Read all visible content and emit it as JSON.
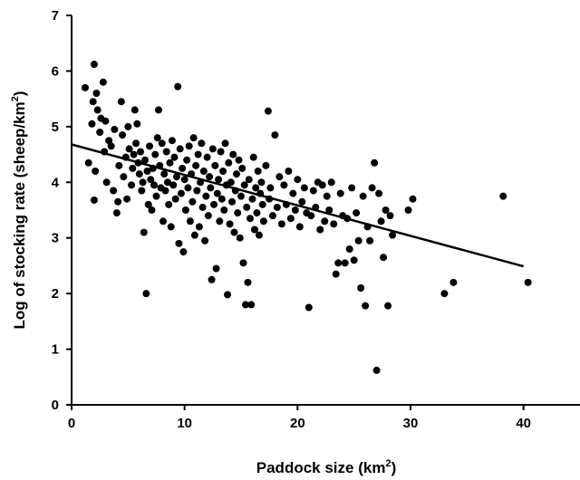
{
  "chart_data": {
    "type": "scatter",
    "xlabel_main": "Paddock size (km",
    "xlabel_sup": "2",
    "xlabel_end": ")",
    "ylabel_main": "Log of stocking rate (sheep/km",
    "ylabel_sup": "2",
    "ylabel_end": ")",
    "xlim": [
      0,
      45
    ],
    "ylim": [
      0,
      7
    ],
    "xticks": [
      0,
      10,
      20,
      30,
      40
    ],
    "yticks": [
      0,
      1,
      2,
      3,
      4,
      5,
      6,
      7
    ],
    "grid": false,
    "point_color": "#000000",
    "trendline": {
      "x": [
        0,
        40
      ],
      "y": [
        4.68,
        2.49
      ]
    },
    "points": [
      [
        1.2,
        5.7
      ],
      [
        1.5,
        4.35
      ],
      [
        1.8,
        5.05
      ],
      [
        1.9,
        5.45
      ],
      [
        2.0,
        6.12
      ],
      [
        2.1,
        4.2
      ],
      [
        2.2,
        5.6
      ],
      [
        2.3,
        5.3
      ],
      [
        2.5,
        4.9
      ],
      [
        2.6,
        5.15
      ],
      [
        2.0,
        3.68
      ],
      [
        2.8,
        5.8
      ],
      [
        2.9,
        4.55
      ],
      [
        3.0,
        5.1
      ],
      [
        3.1,
        4.0
      ],
      [
        3.3,
        4.75
      ],
      [
        3.5,
        4.65
      ],
      [
        3.7,
        3.85
      ],
      [
        3.8,
        4.95
      ],
      [
        4.0,
        3.45
      ],
      [
        4.1,
        3.65
      ],
      [
        4.2,
        4.3
      ],
      [
        4.4,
        5.45
      ],
      [
        4.5,
        4.85
      ],
      [
        4.6,
        4.1
      ],
      [
        4.8,
        4.45
      ],
      [
        4.9,
        3.7
      ],
      [
        5.0,
        5.0
      ],
      [
        5.1,
        4.6
      ],
      [
        5.3,
        3.95
      ],
      [
        5.4,
        4.25
      ],
      [
        5.5,
        4.5
      ],
      [
        5.6,
        5.3
      ],
      [
        5.7,
        4.7
      ],
      [
        5.8,
        5.05
      ],
      [
        5.9,
        4.35
      ],
      [
        6.0,
        4.15
      ],
      [
        6.1,
        4.55
      ],
      [
        6.2,
        3.85
      ],
      [
        6.3,
        4.0
      ],
      [
        6.4,
        3.1
      ],
      [
        6.5,
        4.4
      ],
      [
        6.6,
        2.0
      ],
      [
        6.7,
        4.2
      ],
      [
        6.8,
        3.6
      ],
      [
        6.9,
        4.65
      ],
      [
        7.0,
        4.05
      ],
      [
        7.1,
        3.5
      ],
      [
        7.2,
        4.25
      ],
      [
        7.3,
        3.95
      ],
      [
        7.4,
        4.5
      ],
      [
        7.5,
        3.75
      ],
      [
        7.6,
        4.8
      ],
      [
        7.7,
        5.3
      ],
      [
        7.8,
        4.3
      ],
      [
        7.9,
        3.9
      ],
      [
        8.0,
        4.7
      ],
      [
        8.1,
        3.3
      ],
      [
        8.2,
        4.15
      ],
      [
        8.3,
        3.85
      ],
      [
        8.4,
        4.55
      ],
      [
        8.5,
        4.0
      ],
      [
        8.6,
        3.6
      ],
      [
        8.7,
        4.35
      ],
      [
        8.8,
        3.2
      ],
      [
        8.9,
        4.75
      ],
      [
        9.0,
        3.95
      ],
      [
        9.1,
        4.45
      ],
      [
        9.2,
        3.7
      ],
      [
        9.3,
        4.1
      ],
      [
        9.4,
        5.72
      ],
      [
        9.5,
        2.9
      ],
      [
        9.6,
        4.6
      ],
      [
        9.7,
        3.8
      ],
      [
        9.8,
        4.25
      ],
      [
        9.9,
        2.75
      ],
      [
        10.0,
        4.05
      ],
      [
        10.1,
        3.5
      ],
      [
        10.2,
        4.4
      ],
      [
        10.3,
        3.9
      ],
      [
        10.4,
        4.65
      ],
      [
        10.5,
        3.3
      ],
      [
        10.6,
        4.15
      ],
      [
        10.7,
        3.65
      ],
      [
        10.8,
        4.8
      ],
      [
        10.9,
        3.05
      ],
      [
        11.0,
        4.3
      ],
      [
        11.1,
        3.85
      ],
      [
        11.2,
        4.5
      ],
      [
        11.3,
        3.2
      ],
      [
        11.4,
        4.0
      ],
      [
        11.5,
        4.7
      ],
      [
        11.6,
        3.55
      ],
      [
        11.7,
        4.2
      ],
      [
        11.8,
        2.95
      ],
      [
        11.9,
        3.75
      ],
      [
        12.0,
        4.45
      ],
      [
        12.1,
        3.4
      ],
      [
        12.2,
        4.1
      ],
      [
        12.3,
        3.9
      ],
      [
        12.4,
        2.25
      ],
      [
        12.5,
        4.6
      ],
      [
        12.6,
        3.6
      ],
      [
        12.7,
        4.3
      ],
      [
        12.8,
        2.45
      ],
      [
        12.9,
        3.8
      ],
      [
        13.0,
        4.05
      ],
      [
        13.1,
        3.3
      ],
      [
        13.2,
        4.55
      ],
      [
        13.3,
        3.7
      ],
      [
        13.4,
        4.2
      ],
      [
        13.5,
        3.5
      ],
      [
        13.6,
        4.7
      ],
      [
        13.7,
        3.95
      ],
      [
        13.8,
        1.98
      ],
      [
        13.9,
        4.35
      ],
      [
        14.0,
        3.25
      ],
      [
        14.1,
        4.0
      ],
      [
        14.2,
        3.65
      ],
      [
        14.3,
        4.5
      ],
      [
        14.4,
        3.1
      ],
      [
        14.5,
        3.85
      ],
      [
        14.6,
        4.15
      ],
      [
        14.7,
        3.45
      ],
      [
        14.8,
        4.4
      ],
      [
        14.9,
        3.0
      ],
      [
        15.0,
        3.75
      ],
      [
        15.1,
        4.25
      ],
      [
        15.2,
        2.55
      ],
      [
        15.3,
        3.95
      ],
      [
        15.4,
        1.8
      ],
      [
        15.5,
        3.55
      ],
      [
        15.6,
        2.2
      ],
      [
        15.7,
        4.05
      ],
      [
        15.8,
        3.35
      ],
      [
        15.9,
        1.8
      ],
      [
        16.0,
        3.7
      ],
      [
        16.1,
        4.45
      ],
      [
        16.2,
        3.15
      ],
      [
        16.3,
        3.9
      ],
      [
        16.4,
        3.45
      ],
      [
        16.5,
        4.2
      ],
      [
        16.6,
        3.05
      ],
      [
        16.7,
        3.8
      ],
      [
        16.8,
        4.0
      ],
      [
        16.9,
        3.6
      ],
      [
        17.0,
        3.3
      ],
      [
        17.2,
        4.3
      ],
      [
        17.4,
        5.28
      ],
      [
        17.5,
        3.7
      ],
      [
        17.6,
        3.9
      ],
      [
        17.8,
        3.4
      ],
      [
        18.0,
        4.85
      ],
      [
        18.2,
        3.55
      ],
      [
        18.4,
        4.1
      ],
      [
        18.6,
        3.25
      ],
      [
        18.8,
        3.95
      ],
      [
        19.0,
        3.6
      ],
      [
        19.2,
        4.2
      ],
      [
        19.4,
        3.35
      ],
      [
        19.6,
        3.8
      ],
      [
        19.8,
        3.5
      ],
      [
        20.0,
        4.05
      ],
      [
        20.2,
        3.2
      ],
      [
        20.4,
        3.65
      ],
      [
        20.6,
        3.9
      ],
      [
        20.8,
        3.45
      ],
      [
        21.0,
        1.75
      ],
      [
        21.2,
        3.4
      ],
      [
        21.4,
        3.85
      ],
      [
        21.6,
        3.55
      ],
      [
        21.8,
        4.0
      ],
      [
        22.0,
        3.15
      ],
      [
        22.2,
        3.95
      ],
      [
        22.4,
        3.3
      ],
      [
        22.6,
        3.75
      ],
      [
        22.8,
        3.5
      ],
      [
        23.0,
        4.0
      ],
      [
        23.2,
        3.25
      ],
      [
        23.4,
        2.35
      ],
      [
        23.6,
        2.55
      ],
      [
        23.8,
        3.8
      ],
      [
        24.0,
        3.4
      ],
      [
        24.2,
        2.55
      ],
      [
        24.4,
        3.35
      ],
      [
        24.6,
        2.8
      ],
      [
        24.8,
        3.9
      ],
      [
        25.0,
        2.6
      ],
      [
        25.2,
        3.45
      ],
      [
        25.4,
        2.95
      ],
      [
        25.6,
        2.1
      ],
      [
        25.8,
        3.75
      ],
      [
        26.0,
        1.78
      ],
      [
        26.2,
        3.2
      ],
      [
        26.4,
        2.95
      ],
      [
        26.6,
        3.9
      ],
      [
        26.8,
        4.35
      ],
      [
        27.0,
        0.62
      ],
      [
        27.2,
        3.8
      ],
      [
        27.4,
        3.3
      ],
      [
        27.6,
        2.65
      ],
      [
        27.8,
        3.5
      ],
      [
        28.0,
        1.78
      ],
      [
        28.2,
        3.4
      ],
      [
        28.4,
        3.05
      ],
      [
        29.8,
        3.5
      ],
      [
        30.2,
        3.7
      ],
      [
        33.0,
        2.0
      ],
      [
        33.8,
        2.2
      ],
      [
        38.2,
        3.75
      ],
      [
        40.4,
        2.2
      ]
    ]
  }
}
